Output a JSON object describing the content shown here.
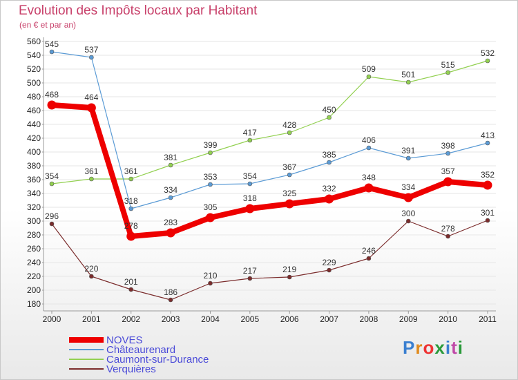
{
  "chart_data": {
    "type": "line",
    "title": "Evolution des Impôts locaux par Habitant",
    "subtitle": "(en € et par an)",
    "xlabel": "",
    "ylabel": "",
    "categories": [
      "2000",
      "2001",
      "2002",
      "2003",
      "2004",
      "2005",
      "2006",
      "2007",
      "2008",
      "2009",
      "2010",
      "2011"
    ],
    "ylim": [
      180,
      560
    ],
    "yticks": [
      180,
      200,
      220,
      240,
      260,
      280,
      300,
      320,
      340,
      360,
      380,
      400,
      420,
      440,
      460,
      480,
      500,
      520,
      540,
      560
    ],
    "series": [
      {
        "name": "NOVES",
        "color": "#ee0000",
        "values": [
          468,
          464,
          278,
          283,
          305,
          318,
          325,
          332,
          348,
          334,
          357,
          352
        ]
      },
      {
        "name": "Châteaurenard",
        "color": "#5b9bd5",
        "values": [
          545,
          537,
          318,
          334,
          353,
          354,
          367,
          385,
          406,
          391,
          398,
          413
        ]
      },
      {
        "name": "Caumont-sur-Durance",
        "color": "#92d050",
        "values": [
          354,
          361,
          361,
          381,
          399,
          417,
          428,
          450,
          509,
          501,
          515,
          532
        ]
      },
      {
        "name": "Verquières",
        "color": "#7b2c2c",
        "values": [
          296,
          220,
          201,
          186,
          210,
          217,
          219,
          229,
          246,
          300,
          278,
          301
        ]
      }
    ],
    "legend_position": "bottom-left"
  },
  "logo": {
    "text": "Proxiti",
    "letter_colors": [
      "#3a7fd0",
      "#e08a1c",
      "#ee3333",
      "#2a9a3a",
      "#3a7fd0",
      "#c04aa8",
      "#2a9a3a"
    ]
  }
}
